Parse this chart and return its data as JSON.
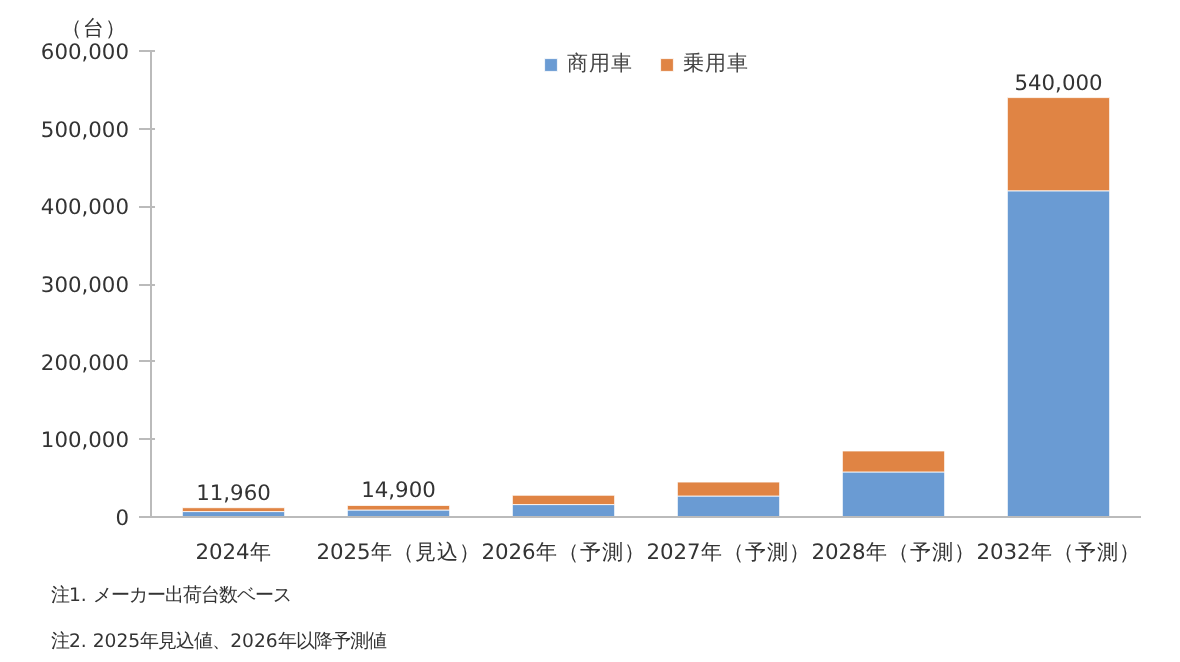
{
  "chart_data": {
    "type": "bar",
    "stacked": true,
    "ylabel": "（台）",
    "categories": [
      "2024年",
      "2025年（見込）",
      "2026年（予測）",
      "2027年（予測）",
      "2028年（予測）",
      "2032年（予測）"
    ],
    "series": [
      {
        "name": "商用車",
        "color": "#6a9bd3",
        "values": [
          7000,
          9000,
          16000,
          27000,
          58000,
          420000
        ]
      },
      {
        "name": "乗用車",
        "color": "#e08444",
        "values": [
          4960,
          5900,
          12000,
          18000,
          27000,
          120000
        ]
      }
    ],
    "totals": [
      "11,960",
      "14,900",
      null,
      null,
      null,
      "540,000"
    ],
    "ylim": [
      0,
      600000
    ],
    "yticks": [
      {
        "value": 0,
        "label": "0"
      },
      {
        "value": 100000,
        "label": "100,000"
      },
      {
        "value": 200000,
        "label": "200,000"
      },
      {
        "value": 300000,
        "label": "300,000"
      },
      {
        "value": 400000,
        "label": "400,000"
      },
      {
        "value": 500000,
        "label": "500,000"
      },
      {
        "value": 600000,
        "label": "600,000"
      }
    ],
    "grid": false,
    "legend": "top",
    "annotations": [
      "注1. メーカー出荷台数ベース",
      "注2. 2025年見込値、2026年以降予測値"
    ]
  }
}
